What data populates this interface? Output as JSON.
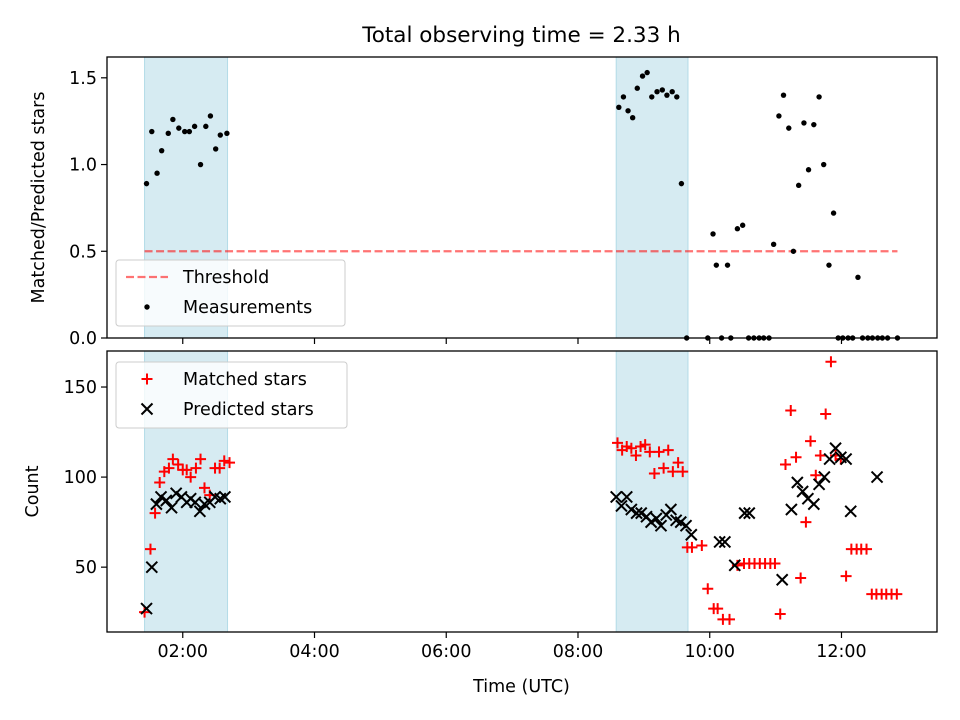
{
  "figure": {
    "title": "Total observing time = 2.33 h"
  },
  "colors": {
    "shade": "#add8e6",
    "threshold": "#ff0000",
    "measurements": "#000000",
    "matched": "#ff0000",
    "predicted": "#000000"
  },
  "chart_data": [
    {
      "type": "scatter",
      "ylabel": "Matched/Predicted stars",
      "xlim": [
        0.85,
        13.45
      ],
      "ylim": [
        0,
        1.62
      ],
      "yticks": [
        0.0,
        0.5,
        1.0,
        1.5
      ],
      "ytick_labels": [
        "0.0",
        "0.5",
        "1.0",
        "1.5"
      ],
      "shaded_intervals": [
        [
          1.42,
          2.68
        ],
        [
          8.58,
          9.67
        ]
      ],
      "legend_position": "lower left",
      "threshold": {
        "name": "Threshold",
        "y": 0.5,
        "x_range": [
          1.42,
          12.85
        ],
        "style": "dashed"
      },
      "series": [
        {
          "name": "Measurements",
          "marker": "dot",
          "x": [
            1.45,
            1.53,
            1.61,
            1.68,
            1.78,
            1.85,
            1.94,
            2.03,
            2.1,
            2.18,
            2.27,
            2.35,
            2.42,
            2.5,
            2.57,
            2.67,
            8.62,
            8.69,
            8.76,
            8.83,
            8.9,
            8.98,
            9.05,
            9.12,
            9.2,
            9.28,
            9.35,
            9.43,
            9.5,
            9.57,
            9.65,
            9.97,
            10.05,
            10.1,
            10.18,
            10.27,
            10.32,
            10.42,
            10.5,
            10.59,
            10.67,
            10.75,
            10.82,
            10.9,
            10.97,
            11.05,
            11.12,
            11.2,
            11.27,
            11.35,
            11.43,
            11.5,
            11.58,
            11.66,
            11.73,
            11.81,
            11.88,
            11.95,
            12.02,
            12.1,
            12.17,
            12.25,
            12.32,
            12.4,
            12.47,
            12.55,
            12.62,
            12.7,
            12.85
          ],
          "y": [
            0.89,
            1.19,
            0.95,
            1.08,
            1.18,
            1.26,
            1.21,
            1.19,
            1.19,
            1.22,
            1.0,
            1.22,
            1.28,
            1.09,
            1.17,
            1.18,
            1.33,
            1.39,
            1.31,
            1.27,
            1.44,
            1.51,
            1.53,
            1.39,
            1.42,
            1.43,
            1.4,
            1.42,
            1.39,
            0.89,
            0.0,
            0.0,
            0.6,
            0.42,
            0.0,
            0.42,
            0.0,
            0.63,
            0.65,
            0.0,
            0.0,
            0.0,
            0.0,
            0.0,
            0.54,
            1.28,
            1.4,
            1.21,
            0.5,
            0.88,
            1.24,
            0.97,
            1.23,
            1.39,
            1.0,
            0.42,
            0.72,
            0.0,
            0.0,
            0.0,
            0.0,
            0.35,
            0.0,
            0.0,
            0.0,
            0.0,
            0.0,
            0.0,
            0.0
          ]
        }
      ]
    },
    {
      "type": "scatter",
      "ylabel": "Count",
      "xlabel": "Time (UTC)",
      "xlim": [
        0.85,
        13.45
      ],
      "ylim": [
        14,
        170
      ],
      "yticks": [
        50,
        100,
        150
      ],
      "ytick_labels": [
        "50",
        "100",
        "150"
      ],
      "xticks": [
        2,
        4,
        6,
        8,
        10,
        12
      ],
      "xtick_labels": [
        "02:00",
        "04:00",
        "06:00",
        "08:00",
        "10:00",
        "12:00"
      ],
      "shaded_intervals": [
        [
          1.42,
          2.68
        ],
        [
          8.58,
          9.67
        ]
      ],
      "legend_position": "upper left",
      "series": [
        {
          "name": "Matched stars",
          "marker": "plus",
          "x": [
            1.42,
            1.51,
            1.58,
            1.65,
            1.72,
            1.79,
            1.85,
            1.93,
            2.0,
            2.06,
            2.12,
            2.2,
            2.27,
            2.33,
            2.41,
            2.49,
            2.56,
            2.63,
            2.71,
            8.6,
            8.67,
            8.74,
            8.81,
            8.88,
            8.95,
            9.02,
            9.09,
            9.16,
            9.23,
            9.3,
            9.37,
            9.44,
            9.52,
            9.59,
            9.66,
            9.73,
            9.88,
            9.97,
            10.06,
            10.12,
            10.2,
            10.3,
            10.42,
            10.52,
            10.6,
            10.68,
            10.76,
            10.84,
            10.92,
            10.99,
            11.07,
            11.15,
            11.23,
            11.31,
            11.38,
            11.46,
            11.53,
            11.61,
            11.68,
            11.76,
            11.84,
            11.91,
            11.99,
            12.07,
            12.15,
            12.23,
            12.3,
            12.38,
            12.46,
            12.53,
            12.61,
            12.68,
            12.76,
            12.84
          ],
          "y": [
            25,
            60,
            80,
            97,
            103,
            105,
            110,
            107,
            104,
            104,
            100,
            105,
            110,
            94,
            90,
            105,
            105,
            109,
            108,
            119,
            115,
            117,
            116,
            112,
            117,
            118,
            114,
            102,
            114,
            105,
            115,
            103,
            108,
            103,
            61,
            61,
            62,
            38,
            27,
            27,
            21,
            21,
            51,
            52,
            52,
            52,
            52,
            52,
            52,
            52,
            24,
            107,
            137,
            111,
            44,
            75,
            120,
            101,
            112,
            135,
            164,
            112,
            110,
            45,
            60,
            60,
            60,
            60,
            35,
            35,
            35,
            35,
            35,
            35
          ]
        },
        {
          "name": "Predicted stars",
          "marker": "x",
          "x": [
            1.45,
            1.53,
            1.6,
            1.67,
            1.75,
            1.83,
            1.9,
            1.98,
            2.06,
            2.12,
            2.19,
            2.26,
            2.33,
            2.41,
            2.49,
            2.57,
            2.64,
            8.58,
            8.66,
            8.74,
            8.81,
            8.89,
            8.96,
            9.04,
            9.11,
            9.19,
            9.26,
            9.34,
            9.41,
            9.49,
            9.56,
            9.64,
            9.72,
            10.15,
            10.23,
            10.38,
            10.53,
            10.6,
            11.1,
            11.24,
            11.33,
            11.41,
            11.49,
            11.58,
            11.66,
            11.74,
            11.82,
            11.91,
            11.99,
            12.07,
            12.14,
            12.54
          ],
          "y": [
            27,
            50,
            85,
            89,
            87,
            83,
            91,
            89,
            86,
            88,
            86,
            81,
            85,
            86,
            89,
            88,
            89,
            89,
            84,
            89,
            82,
            80,
            80,
            78,
            75,
            77,
            73,
            79,
            82,
            76,
            75,
            73,
            68,
            64,
            64,
            51,
            80,
            80,
            43,
            82,
            97,
            92,
            88,
            85,
            96,
            100,
            110,
            116,
            111,
            110,
            81,
            100
          ]
        }
      ]
    }
  ]
}
